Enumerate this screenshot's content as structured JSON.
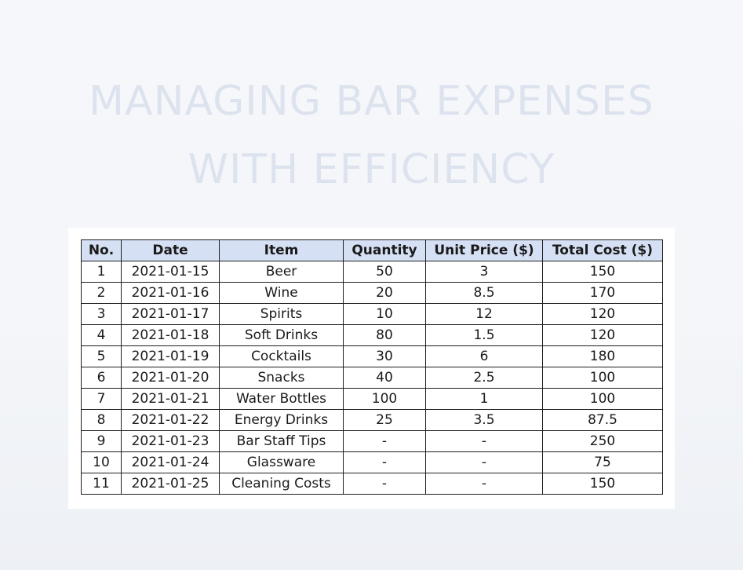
{
  "title": {
    "line1": "MANAGING BAR EXPENSES",
    "line2": "WITH EFFICIENCY"
  },
  "table": {
    "headers": [
      "No.",
      "Date",
      "Item",
      "Quantity",
      "Unit Price ($)",
      "Total Cost ($)"
    ],
    "rows": [
      [
        "1",
        "2021-01-15",
        "Beer",
        "50",
        "3",
        "150"
      ],
      [
        "2",
        "2021-01-16",
        "Wine",
        "20",
        "8.5",
        "170"
      ],
      [
        "3",
        "2021-01-17",
        "Spirits",
        "10",
        "12",
        "120"
      ],
      [
        "4",
        "2021-01-18",
        "Soft Drinks",
        "80",
        "1.5",
        "120"
      ],
      [
        "5",
        "2021-01-19",
        "Cocktails",
        "30",
        "6",
        "180"
      ],
      [
        "6",
        "2021-01-20",
        "Snacks",
        "40",
        "2.5",
        "100"
      ],
      [
        "7",
        "2021-01-21",
        "Water Bottles",
        "100",
        "1",
        "100"
      ],
      [
        "8",
        "2021-01-22",
        "Energy Drinks",
        "25",
        "3.5",
        "87.5"
      ],
      [
        "9",
        "2021-01-23",
        "Bar Staff Tips",
        "-",
        "-",
        "250"
      ],
      [
        "10",
        "2021-01-24",
        "Glassware",
        "-",
        "-",
        "75"
      ],
      [
        "11",
        "2021-01-25",
        "Cleaning Costs",
        "-",
        "-",
        "150"
      ]
    ]
  },
  "colors": {
    "header_fill": "#d6e0f4",
    "title_text": "#dde3ee",
    "border": "#1e1e1e"
  }
}
